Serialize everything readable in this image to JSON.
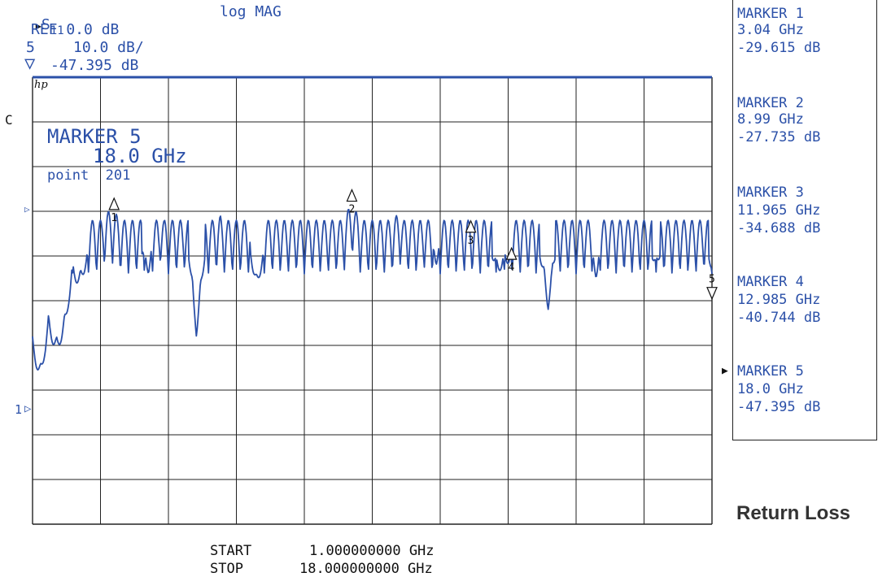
{
  "header": {
    "param_symbol": "▶",
    "param_main": "S",
    "param_sub": "11",
    "format": "log MAG",
    "ref": "REF 0.0 dB",
    "channel": "5",
    "scale": "10.0 dB/",
    "delta_symbol": "▽",
    "marker_value": "-47.395 dB",
    "hp": "hp",
    "coupling": "C"
  },
  "active_marker": {
    "title": "MARKER 5",
    "freq": "18.0 GHz",
    "point": "point  201"
  },
  "ref_label": "1",
  "markers": [
    {
      "id": "1",
      "title": "MARKER 1",
      "freq": "3.04 GHz",
      "value": "-29.615 dB",
      "freq_ghz": 3.04,
      "db": -29.615,
      "active": false
    },
    {
      "id": "2",
      "title": "MARKER 2",
      "freq": "8.99 GHz",
      "value": "-27.735 dB",
      "freq_ghz": 8.99,
      "db": -27.735,
      "active": false
    },
    {
      "id": "3",
      "title": "MARKER 3",
      "freq": "11.965 GHz",
      "value": "-34.688 dB",
      "freq_ghz": 11.965,
      "db": -34.688,
      "active": false
    },
    {
      "id": "4",
      "title": "MARKER 4",
      "freq": "12.985 GHz",
      "value": "-40.744 dB",
      "freq_ghz": 12.985,
      "db": -40.744,
      "active": false
    },
    {
      "id": "5",
      "title": "MARKER 5",
      "freq": "18.0 GHz",
      "value": "-47.395 dB",
      "freq_ghz": 18.0,
      "db": -47.395,
      "active": true
    }
  ],
  "footer": {
    "start_label": "START",
    "start_value": "1.000000000 GHz",
    "stop_label": "STOP",
    "stop_value": "18.000000000 GHz"
  },
  "caption": "Return Loss",
  "colors": {
    "trace": "#2b50a8",
    "grid": "#222222",
    "text": "#2b50a8",
    "caption": "#333333"
  },
  "chart_data": {
    "type": "line",
    "xlim": [
      1.0,
      18.0
    ],
    "ylim": [
      -100,
      0
    ],
    "grid": true,
    "reference_line_db": 0,
    "x_points": 201,
    "series": [
      {
        "values_x_ghz": [
          1.0,
          1.2,
          1.4,
          1.6,
          1.8,
          2.0,
          2.2,
          2.4,
          2.6,
          2.8,
          3.04,
          3.3,
          3.6,
          3.9,
          4.2,
          4.5,
          4.8,
          5.1,
          5.4,
          5.7,
          6.0,
          6.3,
          6.6,
          6.9,
          7.2,
          7.5,
          7.8,
          8.1,
          8.4,
          8.7,
          8.99,
          9.3,
          9.6,
          9.9,
          10.2,
          10.5,
          10.8,
          11.1,
          11.4,
          11.7,
          11.965,
          12.3,
          12.6,
          12.985,
          13.3,
          13.6,
          13.9,
          14.2,
          14.5,
          14.8,
          15.1,
          15.4,
          15.7,
          16.0,
          16.3,
          16.6,
          16.9,
          17.2,
          17.5,
          17.8,
          18.0
        ],
        "values_db": [
          -62,
          -68,
          -57,
          -62,
          -57,
          -45,
          -47,
          -40,
          -36,
          -30,
          -30,
          -33,
          -37,
          -44,
          -30,
          -37,
          -31,
          -58,
          -33,
          -31,
          -38,
          -32,
          -48,
          -36,
          -32,
          -40,
          -34,
          -33,
          -38,
          -33,
          -28,
          -34,
          -40,
          -33,
          -30,
          -38,
          -31,
          -42,
          -33,
          -32,
          -35,
          -33,
          -44,
          -41,
          -33,
          -35,
          -52,
          -33,
          -38,
          -33,
          -45,
          -33,
          -32,
          -39,
          -33,
          -44,
          -32,
          -35,
          -40,
          -31,
          -47
        ]
      }
    ]
  }
}
